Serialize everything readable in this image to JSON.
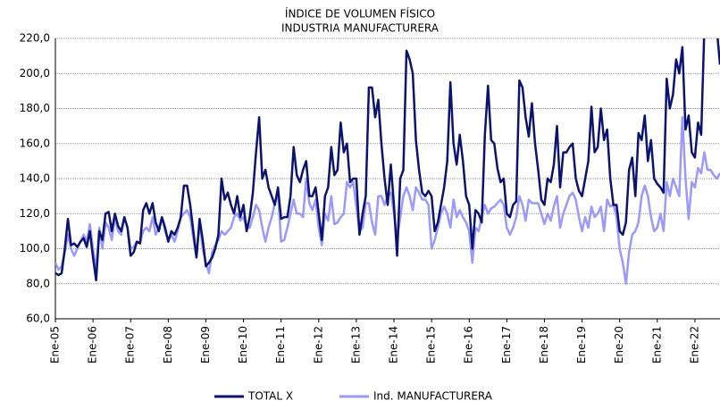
{
  "chart_data": {
    "type": "line",
    "title": [
      "ÍNDICE DE VOLUMEN FÍSICO",
      "INDUSTRIA MANUFACTURERA"
    ],
    "categories": [
      "Ene-05",
      null,
      null,
      null,
      null,
      null,
      null,
      null,
      null,
      null,
      null,
      null,
      "Ene-06",
      null,
      null,
      null,
      null,
      null,
      null,
      null,
      null,
      null,
      null,
      null,
      "Ene-07",
      null,
      null,
      null,
      null,
      null,
      null,
      null,
      null,
      null,
      null,
      null,
      "Ene-08",
      null,
      null,
      null,
      null,
      null,
      null,
      null,
      null,
      null,
      null,
      null,
      "Ene-09",
      null,
      null,
      null,
      null,
      null,
      null,
      null,
      null,
      null,
      null,
      null,
      "Ene-10",
      null,
      null,
      null,
      null,
      null,
      null,
      null,
      null,
      null,
      null,
      null,
      "Ene-11",
      null,
      null,
      null,
      null,
      null,
      null,
      null,
      null,
      null,
      null,
      null,
      "Ene-12",
      null,
      null,
      null,
      null,
      null,
      null,
      null,
      null,
      null,
      null,
      null,
      "Ene-13",
      null,
      null,
      null,
      null,
      null,
      null,
      null,
      null,
      null,
      null,
      null,
      "Ene-14",
      null,
      null,
      null,
      null,
      null,
      null,
      null,
      null,
      null,
      null,
      null,
      "Ene-15",
      null,
      null,
      null,
      null,
      null,
      null,
      null,
      null,
      null,
      null,
      null,
      "Ene-16",
      null,
      null,
      null,
      null,
      null,
      null,
      null,
      null,
      null,
      null,
      null,
      "Ene-17",
      null,
      null,
      null,
      null,
      null,
      null,
      null,
      null,
      null,
      null,
      null,
      "Ene-18",
      null,
      null,
      null,
      null,
      null,
      null,
      null,
      null,
      null,
      null,
      null,
      "Ene-19",
      null,
      null,
      null,
      null,
      null,
      null,
      null,
      null,
      null,
      null,
      null,
      "Ene-20",
      null,
      null,
      null,
      null,
      null,
      null,
      null,
      null,
      null,
      null,
      null,
      "Ene-21",
      null,
      null,
      null,
      null,
      null,
      null,
      null,
      null,
      null,
      null,
      null,
      "Ene-22",
      null,
      null,
      null,
      null,
      null,
      null,
      null,
      null
    ],
    "series": [
      {
        "name": "TOTAL X",
        "color": "#0b1370",
        "values": [
          86,
          85,
          86,
          100,
          117,
          102,
          103,
          101,
          104,
          106,
          101,
          110,
          95,
          82,
          110,
          105,
          120,
          121,
          110,
          120,
          113,
          110,
          118,
          112,
          96,
          98,
          104,
          103,
          122,
          126,
          120,
          126,
          115,
          110,
          118,
          112,
          104,
          110,
          108,
          112,
          118,
          136,
          136,
          125,
          110,
          95,
          117,
          105,
          90,
          92,
          95,
          100,
          108,
          140,
          128,
          132,
          125,
          120,
          130,
          118,
          125,
          110,
          118,
          132,
          155,
          175,
          140,
          145,
          135,
          130,
          125,
          135,
          117,
          118,
          118,
          130,
          158,
          142,
          138,
          145,
          150,
          130,
          130,
          135,
          120,
          105,
          130,
          135,
          158,
          142,
          145,
          172,
          155,
          160,
          138,
          140,
          140,
          108,
          120,
          130,
          192,
          192,
          175,
          185,
          160,
          140,
          125,
          148,
          125,
          96,
          140,
          145,
          213,
          208,
          200,
          162,
          145,
          132,
          130,
          133,
          130,
          110,
          115,
          125,
          135,
          150,
          195,
          160,
          148,
          165,
          150,
          130,
          125,
          100,
          122,
          120,
          115,
          165,
          193,
          162,
          160,
          146,
          138,
          140,
          120,
          118,
          125,
          127,
          196,
          192,
          175,
          164,
          183,
          160,
          145,
          128,
          125,
          140,
          138,
          148,
          170,
          135,
          155,
          155,
          158,
          160,
          140,
          133,
          130,
          140,
          150,
          181,
          155,
          158,
          180,
          162,
          168,
          140,
          125,
          125,
          110,
          108,
          115,
          145,
          152,
          130,
          166,
          162,
          176,
          150,
          162,
          140,
          137,
          135,
          132,
          197,
          180,
          188,
          208,
          200,
          215,
          168,
          176,
          155,
          152,
          172,
          165,
          225,
          230,
          230,
          228,
          225,
          205
        ]
      },
      {
        "name": "Ind. MANUFACTURERA",
        "color": "#9999ff",
        "values": [
          92,
          88,
          90,
          98,
          108,
          100,
          96,
          100,
          104,
          108,
          104,
          114,
          100,
          88,
          112,
          100,
          115,
          112,
          105,
          118,
          110,
          108,
          118,
          112,
          100,
          101,
          104,
          103,
          110,
          112,
          110,
          118,
          108,
          112,
          118,
          110,
          105,
          108,
          104,
          110,
          118,
          120,
          122,
          118,
          106,
          95,
          115,
          100,
          92,
          86,
          98,
          102,
          105,
          110,
          108,
          110,
          112,
          118,
          120,
          116,
          118,
          112,
          112,
          118,
          125,
          122,
          112,
          104,
          112,
          118,
          126,
          132,
          104,
          105,
          112,
          120,
          128,
          120,
          120,
          118,
          140,
          126,
          122,
          128,
          112,
          102,
          120,
          116,
          130,
          114,
          115,
          118,
          120,
          138,
          135,
          138,
          124,
          110,
          112,
          126,
          126,
          115,
          108,
          130,
          130,
          125,
          130,
          132,
          120,
          105,
          118,
          130,
          135,
          130,
          122,
          135,
          132,
          128,
          128,
          125,
          100,
          105,
          112,
          120,
          124,
          120,
          112,
          128,
          118,
          122,
          118,
          115,
          110,
          92,
          112,
          110,
          118,
          125,
          120,
          123,
          124,
          126,
          128,
          125,
          112,
          108,
          112,
          118,
          130,
          125,
          116,
          128,
          126,
          126,
          126,
          120,
          114,
          120,
          116,
          124,
          130,
          112,
          120,
          125,
          130,
          132,
          128,
          118,
          110,
          118,
          112,
          124,
          118,
          120,
          124,
          110,
          128,
          124,
          125,
          118,
          100,
          92,
          80,
          98,
          108,
          110,
          115,
          130,
          136,
          130,
          118,
          110,
          112,
          120,
          110,
          138,
          130,
          140,
          135,
          130,
          175,
          140,
          117,
          138,
          135,
          146,
          143,
          155,
          145,
          145,
          142,
          140,
          143
        ]
      }
    ],
    "ylim": [
      60,
      220
    ],
    "yticks": [
      {
        "value": 60,
        "label": "60,0"
      },
      {
        "value": 80,
        "label": "80,0"
      },
      {
        "value": 100,
        "label": "100,0"
      },
      {
        "value": 120,
        "label": "120,0"
      },
      {
        "value": 140,
        "label": "140,0"
      },
      {
        "value": 160,
        "label": "160,0"
      },
      {
        "value": 180,
        "label": "180,0"
      },
      {
        "value": 200,
        "label": "200,0"
      },
      {
        "value": 220,
        "label": "220,0"
      }
    ],
    "grid": true,
    "legend": "bottom"
  }
}
